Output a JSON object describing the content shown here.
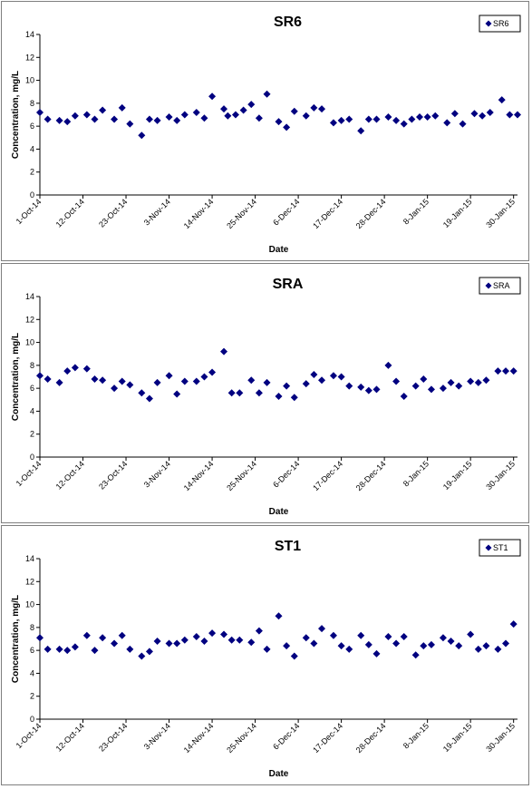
{
  "chart_data": [
    {
      "type": "scatter",
      "title": "SR6",
      "xlabel": "Date",
      "ylabel": "Concentration, mg/L",
      "ylim": [
        0,
        14
      ],
      "yticks": [
        0,
        2,
        4,
        6,
        8,
        10,
        12,
        14
      ],
      "xlim": [
        "2014-10-01",
        "2015-01-31"
      ],
      "xtick_labels": [
        "1-Oct-14",
        "12-Oct-14",
        "23-Oct-14",
        "3-Nov-14",
        "14-Nov-14",
        "25-Nov-14",
        "6-Dec-14",
        "17-Dec-14",
        "28-Dec-14",
        "8-Jan-15",
        "19-Jan-15",
        "30-Jan-15"
      ],
      "grid": false,
      "legend": "top-right",
      "marker_color": "#000080",
      "series": [
        {
          "name": "SR6",
          "x": [
            "2014-10-01",
            "2014-10-03",
            "2014-10-06",
            "2014-10-08",
            "2014-10-10",
            "2014-10-13",
            "2014-10-15",
            "2014-10-17",
            "2014-10-20",
            "2014-10-22",
            "2014-10-24",
            "2014-10-27",
            "2014-10-29",
            "2014-10-31",
            "2014-11-03",
            "2014-11-05",
            "2014-11-07",
            "2014-11-10",
            "2014-11-12",
            "2014-11-14",
            "2014-11-17",
            "2014-11-18",
            "2014-11-20",
            "2014-11-22",
            "2014-11-24",
            "2014-11-26",
            "2014-11-28",
            "2014-12-01",
            "2014-12-03",
            "2014-12-05",
            "2014-12-08",
            "2014-12-10",
            "2014-12-12",
            "2014-12-15",
            "2014-12-17",
            "2014-12-19",
            "2014-12-22",
            "2014-12-24",
            "2014-12-26",
            "2014-12-29",
            "2014-12-31",
            "2015-01-02",
            "2015-01-04",
            "2015-01-06",
            "2015-01-08",
            "2015-01-10",
            "2015-01-13",
            "2015-01-15",
            "2015-01-17",
            "2015-01-20",
            "2015-01-22",
            "2015-01-24",
            "2015-01-27",
            "2015-01-29",
            "2015-01-31"
          ],
          "y": [
            7.2,
            6.6,
            6.5,
            6.4,
            6.9,
            7.0,
            6.6,
            7.4,
            6.6,
            7.6,
            6.2,
            5.2,
            6.6,
            6.5,
            6.8,
            6.5,
            7.0,
            7.2,
            6.7,
            8.6,
            7.5,
            6.9,
            7.0,
            7.4,
            7.9,
            6.7,
            8.8,
            6.4,
            5.9,
            7.3,
            6.9,
            7.6,
            7.5,
            6.3,
            6.5,
            6.6,
            5.6,
            6.6,
            6.6,
            6.8,
            6.5,
            6.2,
            6.6,
            6.8,
            6.8,
            6.9,
            6.3,
            7.1,
            6.2,
            7.1,
            6.9,
            7.2,
            8.3,
            7.0,
            7.0
          ]
        }
      ]
    },
    {
      "type": "scatter",
      "title": "SRA",
      "xlabel": "Date",
      "ylabel": "Concentration, mg/L",
      "ylim": [
        0,
        14
      ],
      "yticks": [
        0,
        2,
        4,
        6,
        8,
        10,
        12,
        14
      ],
      "xlim": [
        "2014-10-01",
        "2015-01-31"
      ],
      "xtick_labels": [
        "1-Oct-14",
        "12-Oct-14",
        "23-Oct-14",
        "3-Nov-14",
        "14-Nov-14",
        "25-Nov-14",
        "6-Dec-14",
        "17-Dec-14",
        "28-Dec-14",
        "8-Jan-15",
        "19-Jan-15",
        "30-Jan-15"
      ],
      "grid": false,
      "legend": "top-right",
      "marker_color": "#000080",
      "series": [
        {
          "name": "SRA",
          "x": [
            "2014-10-01",
            "2014-10-03",
            "2014-10-06",
            "2014-10-08",
            "2014-10-10",
            "2014-10-13",
            "2014-10-15",
            "2014-10-17",
            "2014-10-20",
            "2014-10-22",
            "2014-10-24",
            "2014-10-27",
            "2014-10-29",
            "2014-10-31",
            "2014-11-03",
            "2014-11-05",
            "2014-11-07",
            "2014-11-10",
            "2014-11-12",
            "2014-11-14",
            "2014-11-17",
            "2014-11-19",
            "2014-11-21",
            "2014-11-24",
            "2014-11-26",
            "2014-11-28",
            "2014-12-01",
            "2014-12-03",
            "2014-12-05",
            "2014-12-08",
            "2014-12-10",
            "2014-12-12",
            "2014-12-15",
            "2014-12-17",
            "2014-12-19",
            "2014-12-22",
            "2014-12-24",
            "2014-12-26",
            "2014-12-29",
            "2014-12-31",
            "2015-01-02",
            "2015-01-05",
            "2015-01-07",
            "2015-01-09",
            "2015-01-12",
            "2015-01-14",
            "2015-01-16",
            "2015-01-19",
            "2015-01-21",
            "2015-01-23",
            "2015-01-26",
            "2015-01-28",
            "2015-01-30"
          ],
          "y": [
            7.1,
            6.8,
            6.5,
            7.5,
            7.8,
            7.7,
            6.8,
            6.7,
            6.0,
            6.6,
            6.3,
            5.6,
            5.1,
            6.5,
            7.1,
            5.5,
            6.6,
            6.6,
            7.0,
            7.4,
            9.2,
            5.6,
            5.6,
            6.7,
            5.6,
            6.5,
            5.3,
            6.2,
            5.2,
            6.4,
            7.2,
            6.7,
            7.1,
            7.0,
            6.2,
            6.1,
            5.8,
            5.9,
            8.0,
            6.6,
            5.3,
            6.2,
            6.8,
            5.9,
            6.0,
            6.5,
            6.2,
            6.6,
            6.5,
            6.7,
            7.5,
            7.5,
            7.5
          ]
        }
      ]
    },
    {
      "type": "scatter",
      "title": "ST1",
      "xlabel": "Date",
      "ylabel": "Concentration, mg/L",
      "ylim": [
        0,
        14
      ],
      "yticks": [
        0,
        2,
        4,
        6,
        8,
        10,
        12,
        14
      ],
      "xlim": [
        "2014-10-01",
        "2015-01-31"
      ],
      "xtick_labels": [
        "1-Oct-14",
        "12-Oct-14",
        "23-Oct-14",
        "3-Nov-14",
        "14-Nov-14",
        "25-Nov-14",
        "6-Dec-14",
        "17-Dec-14",
        "28-Dec-14",
        "8-Jan-15",
        "19-Jan-15",
        "30-Jan-15"
      ],
      "grid": false,
      "legend": "top-right",
      "marker_color": "#000080",
      "series": [
        {
          "name": "ST1",
          "x": [
            "2014-10-01",
            "2014-10-03",
            "2014-10-06",
            "2014-10-08",
            "2014-10-10",
            "2014-10-13",
            "2014-10-15",
            "2014-10-17",
            "2014-10-20",
            "2014-10-22",
            "2014-10-24",
            "2014-10-27",
            "2014-10-29",
            "2014-10-31",
            "2014-11-03",
            "2014-11-05",
            "2014-11-07",
            "2014-11-10",
            "2014-11-12",
            "2014-11-14",
            "2014-11-17",
            "2014-11-19",
            "2014-11-21",
            "2014-11-24",
            "2014-11-26",
            "2014-11-28",
            "2014-12-01",
            "2014-12-03",
            "2014-12-05",
            "2014-12-08",
            "2014-12-10",
            "2014-12-12",
            "2014-12-15",
            "2014-12-17",
            "2014-12-19",
            "2014-12-22",
            "2014-12-24",
            "2014-12-26",
            "2014-12-29",
            "2014-12-31",
            "2015-01-02",
            "2015-01-05",
            "2015-01-07",
            "2015-01-09",
            "2015-01-12",
            "2015-01-14",
            "2015-01-16",
            "2015-01-19",
            "2015-01-21",
            "2015-01-23",
            "2015-01-26",
            "2015-01-28",
            "2015-01-30"
          ],
          "y": [
            7.1,
            6.1,
            6.1,
            6.0,
            6.3,
            7.3,
            6.0,
            7.1,
            6.6,
            7.3,
            6.1,
            5.5,
            5.9,
            6.8,
            6.6,
            6.6,
            6.9,
            7.2,
            6.8,
            7.5,
            7.4,
            6.9,
            6.9,
            6.7,
            7.7,
            6.1,
            9.0,
            6.4,
            5.5,
            7.1,
            6.6,
            7.9,
            7.3,
            6.4,
            6.1,
            7.3,
            6.5,
            5.7,
            7.2,
            6.6,
            7.2,
            5.6,
            6.4,
            6.5,
            7.1,
            6.8,
            6.4,
            7.4,
            6.1,
            6.4,
            6.1,
            6.6,
            8.3
          ]
        }
      ]
    }
  ]
}
